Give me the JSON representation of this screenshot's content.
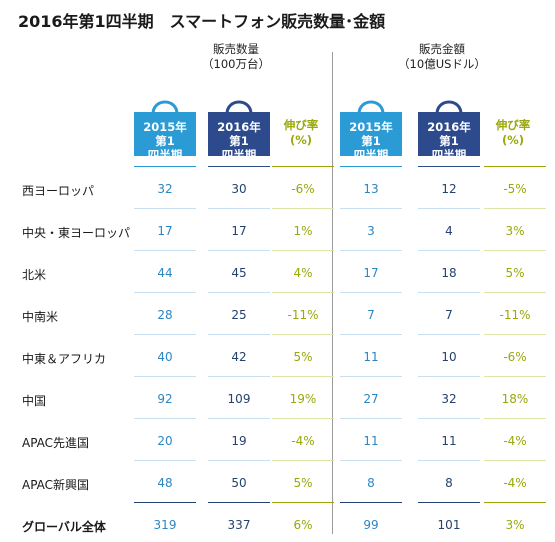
{
  "title": "2016年第1四半期　スマートフォン販売数量･金額",
  "groups": [
    {
      "line1": "販売数量",
      "line2": "（100万台）"
    },
    {
      "line1": "販売金額",
      "line2": "（10億USドル）"
    }
  ],
  "column_headers": {
    "q2015": [
      "2015年",
      "第1",
      "四半期"
    ],
    "q2016": [
      "2016年",
      "第1",
      "四半期"
    ],
    "growth": [
      "伸び率",
      "(%)"
    ]
  },
  "colors": {
    "light_blue": "#2b9bd6",
    "dark_blue": "#2d4a8c",
    "growth_green": "#9aa80a"
  },
  "rows": [
    {
      "label": "西ヨーロッパ",
      "u15": "32",
      "u16": "30",
      "ug": "-6%",
      "v15": "13",
      "v16": "12",
      "vg": "-5%"
    },
    {
      "label": "中央・東ヨーロッパ",
      "u15": "17",
      "u16": "17",
      "ug": "1%",
      "v15": "3",
      "v16": "4",
      "vg": "3%"
    },
    {
      "label": "北米",
      "u15": "44",
      "u16": "45",
      "ug": "4%",
      "v15": "17",
      "v16": "18",
      "vg": "5%"
    },
    {
      "label": "中南米",
      "u15": "28",
      "u16": "25",
      "ug": "-11%",
      "v15": "7",
      "v16": "7",
      "vg": "-11%"
    },
    {
      "label": "中東＆アフリカ",
      "u15": "40",
      "u16": "42",
      "ug": "5%",
      "v15": "11",
      "v16": "10",
      "vg": "-6%"
    },
    {
      "label": "中国",
      "u15": "92",
      "u16": "109",
      "ug": "19%",
      "v15": "27",
      "v16": "32",
      "vg": "18%"
    },
    {
      "label": "APAC先進国",
      "u15": "20",
      "u16": "19",
      "ug": "-4%",
      "v15": "11",
      "v16": "11",
      "vg": "-4%"
    },
    {
      "label": "APAC新興国",
      "u15": "48",
      "u16": "50",
      "ug": "5%",
      "v15": "8",
      "v16": "8",
      "vg": "-4%"
    }
  ],
  "total": {
    "label": "グローバル全体",
    "u15": "319",
    "u16": "337",
    "ug": "6%",
    "v15": "99",
    "v16": "101",
    "vg": "3%"
  }
}
